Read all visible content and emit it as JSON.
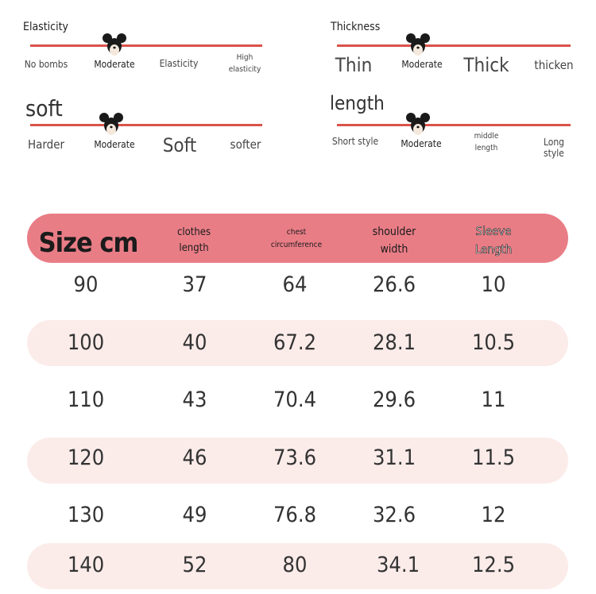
{
  "gauges": {
    "elasticity": {
      "title": "Elasticity",
      "options": [
        "No bombs",
        "Moderate",
        "Elasticity",
        "High elasticity"
      ],
      "selected": "Moderate"
    },
    "thickness": {
      "title": "Thickness",
      "options": [
        "Thin",
        "Moderate",
        "Thick",
        "thicken"
      ],
      "selected": "Moderate"
    },
    "softness": {
      "title": "soft",
      "options": [
        "Harder",
        "Moderate",
        "Soft",
        "softer"
      ],
      "selected": "Moderate"
    },
    "length": {
      "title": "length",
      "options": [
        "Short style",
        "Moderate",
        "middle length",
        "Long style"
      ],
      "selected": "Moderate"
    }
  },
  "table": {
    "headers": [
      "Size cm",
      "clothes length",
      "chest circumference",
      "shoulder width",
      "Sleeve Length"
    ],
    "rows": [
      [
        "90",
        "37",
        "64",
        "26.6",
        "10"
      ],
      [
        "100",
        "40",
        "67.2",
        "28.1",
        "10.5"
      ],
      [
        "110",
        "43",
        "70.4",
        "29.6",
        "11"
      ],
      [
        "120",
        "46",
        "73.6",
        "31.1",
        "11.5"
      ],
      [
        "130",
        "49",
        "76.8",
        "32.6",
        "12"
      ],
      [
        "140",
        "52",
        "80",
        "34.1",
        "12.5"
      ]
    ]
  },
  "colors": {
    "gauge_line": "#d9534a",
    "header_band": "#e97d86",
    "row_band": "#fbecea"
  },
  "icons": {
    "gauge_marker": "mouse-head-icon"
  }
}
